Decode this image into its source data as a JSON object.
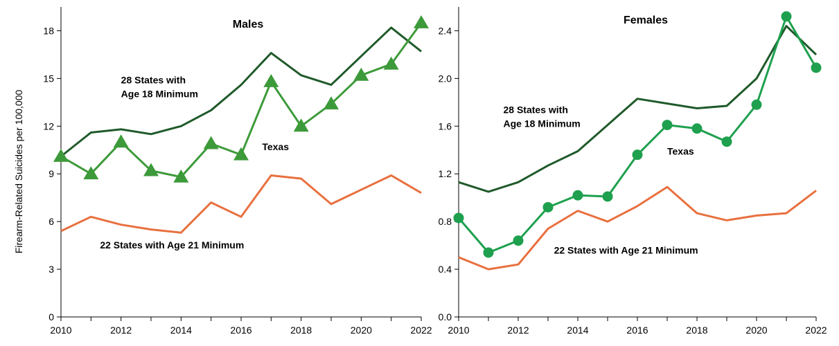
{
  "chart_data": [
    {
      "type": "line",
      "title": "Males",
      "ylabel": "Firearm-Related Suicides per 100,000",
      "xlabel": "",
      "xlim": [
        2010,
        2022
      ],
      "ylim": [
        0,
        19.5
      ],
      "x_ticks": [
        2010,
        2012,
        2014,
        2016,
        2018,
        2020,
        2022
      ],
      "y_ticks": [
        0,
        3,
        6,
        9,
        12,
        15,
        18
      ],
      "y_tick_labels": [
        "0",
        "3",
        "6",
        "9",
        "12",
        "15",
        "18"
      ],
      "x": [
        2010,
        2011,
        2012,
        2013,
        2014,
        2015,
        2016,
        2017,
        2018,
        2019,
        2020,
        2021,
        2022
      ],
      "series": [
        {
          "name": "28 States with Age 18 Minimum",
          "label_lines": [
            "28 States with",
            "Age 18 Minimum"
          ],
          "label_at": [
            2012.0,
            14.7
          ],
          "color": "#1f5a2a",
          "marker": "none",
          "values": [
            10.1,
            11.6,
            11.8,
            11.5,
            12.0,
            13.0,
            14.6,
            16.6,
            15.2,
            14.6,
            16.4,
            18.2,
            16.7
          ]
        },
        {
          "name": "Texas",
          "label_lines": [
            "Texas"
          ],
          "label_at": [
            2016.7,
            10.5
          ],
          "color": "#3d9a3a",
          "marker": "triangle",
          "values": [
            10.1,
            9.0,
            11.0,
            9.2,
            8.8,
            10.9,
            10.2,
            14.8,
            12.0,
            13.4,
            15.2,
            15.9,
            18.5
          ]
        },
        {
          "name": "22 States with Age 21 Minimum",
          "label_lines": [
            "22 States with Age 21 Minimum"
          ],
          "label_at": [
            2011.3,
            4.3
          ],
          "color": "#e8703f",
          "marker": "none",
          "values": [
            5.4,
            6.3,
            5.8,
            5.5,
            5.3,
            7.2,
            6.3,
            8.9,
            8.7,
            7.1,
            8.0,
            8.9,
            7.8
          ]
        }
      ]
    },
    {
      "type": "line",
      "title": "Females",
      "ylabel": "",
      "xlabel": "",
      "xlim": [
        2010,
        2022
      ],
      "ylim": [
        0,
        2.6
      ],
      "x_ticks": [
        2010,
        2012,
        2014,
        2016,
        2018,
        2020,
        2022
      ],
      "y_ticks": [
        0.0,
        0.4,
        0.8,
        1.2,
        1.6,
        2.0,
        2.4
      ],
      "y_tick_labels": [
        "0.0",
        "0.4",
        "0.8",
        "1.2",
        "1.6",
        "2.0",
        "2.4"
      ],
      "x": [
        2010,
        2011,
        2012,
        2013,
        2014,
        2015,
        2016,
        2017,
        2018,
        2019,
        2020,
        2021,
        2022
      ],
      "series": [
        {
          "name": "28 States with Age 18 Minimum",
          "label_lines": [
            "28 States with",
            "Age 18 Minimum"
          ],
          "label_at": [
            2011.5,
            1.71
          ],
          "color": "#1f5a2a",
          "marker": "none",
          "values": [
            1.13,
            1.05,
            1.13,
            1.27,
            1.39,
            1.61,
            1.83,
            1.79,
            1.75,
            1.77,
            2.0,
            2.44,
            2.2
          ]
        },
        {
          "name": "Texas",
          "label_lines": [
            "Texas"
          ],
          "label_at": [
            2017.0,
            1.36
          ],
          "color": "#1ea04e",
          "marker": "circle",
          "values": [
            0.83,
            0.54,
            0.64,
            0.92,
            1.02,
            1.01,
            1.36,
            1.61,
            1.58,
            1.47,
            1.78,
            2.52,
            2.09
          ]
        },
        {
          "name": "22 States with Age 21 Minimum",
          "label_lines": [
            "22 States with Age 21 Minimum"
          ],
          "label_at": [
            2013.2,
            0.53
          ],
          "color": "#e8703f",
          "marker": "none",
          "values": [
            0.5,
            0.4,
            0.44,
            0.74,
            0.89,
            0.8,
            0.93,
            1.09,
            0.87,
            0.81,
            0.85,
            0.87,
            1.06
          ]
        }
      ]
    }
  ]
}
